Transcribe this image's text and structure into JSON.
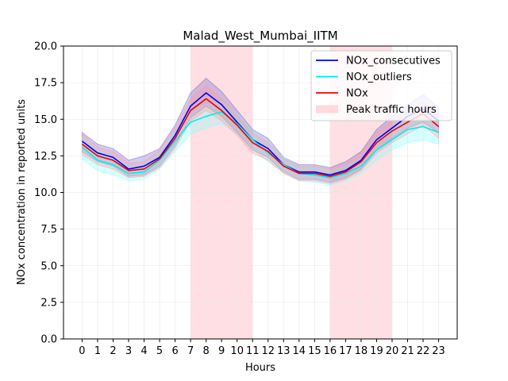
{
  "chart_data": {
    "type": "line",
    "title": "Malad_West_Mumbai_IITM",
    "xlabel": "Hours",
    "ylabel": "NOx concentration in reported units",
    "x": [
      0,
      1,
      2,
      3,
      4,
      5,
      6,
      7,
      8,
      9,
      10,
      11,
      12,
      13,
      14,
      15,
      16,
      17,
      18,
      19,
      20,
      21,
      22,
      23
    ],
    "xlim": [
      -1.2,
      24.2
    ],
    "ylim": [
      0,
      20
    ],
    "yticks": [
      0.0,
      2.5,
      5.0,
      7.5,
      10.0,
      12.5,
      15.0,
      17.5,
      20.0
    ],
    "ytick_labels": [
      "0.0",
      "2.5",
      "5.0",
      "7.5",
      "10.0",
      "12.5",
      "15.0",
      "17.5",
      "20.0"
    ],
    "grid": true,
    "legend_position": "top-right",
    "shaded_regions": [
      {
        "name": "Peak traffic hours",
        "x_start": 7,
        "x_end": 11,
        "color": "#ffc0c8"
      },
      {
        "name": "Peak traffic hours",
        "x_start": 16,
        "x_end": 20,
        "color": "#ffc0c8"
      }
    ],
    "series": [
      {
        "name": "NOx_consecutives",
        "color": "#0000ee",
        "band_color": "#6a5acd",
        "values": [
          13.5,
          12.7,
          12.4,
          11.6,
          11.8,
          12.4,
          13.9,
          15.9,
          16.8,
          16.0,
          14.8,
          13.6,
          13.0,
          11.9,
          11.4,
          11.4,
          11.2,
          11.5,
          12.2,
          13.6,
          14.4,
          15.2,
          15.7,
          14.9
        ],
        "lower": [
          12.8,
          12.1,
          11.8,
          11.1,
          11.2,
          11.8,
          13.2,
          15.1,
          15.9,
          15.2,
          14.1,
          12.9,
          12.4,
          11.4,
          10.9,
          10.9,
          10.7,
          11.0,
          11.6,
          12.9,
          13.7,
          14.4,
          14.8,
          14.1
        ],
        "upper": [
          14.1,
          13.3,
          13.0,
          12.2,
          12.5,
          13.0,
          14.6,
          16.8,
          17.8,
          16.9,
          15.6,
          14.3,
          13.7,
          12.4,
          11.9,
          11.9,
          11.7,
          12.1,
          12.8,
          14.3,
          15.2,
          16.0,
          16.7,
          15.8
        ]
      },
      {
        "name": "NOx_outliers",
        "color": "#00eeee",
        "band_color": "#7fffff",
        "values": [
          13.1,
          12.2,
          11.9,
          11.3,
          11.4,
          12.2,
          13.5,
          14.8,
          15.2,
          15.5,
          14.7,
          13.6,
          12.7,
          11.9,
          11.3,
          11.2,
          11.0,
          11.3,
          11.8,
          12.9,
          13.6,
          14.3,
          14.5,
          14.1
        ],
        "lower": [
          12.3,
          11.5,
          11.2,
          10.8,
          10.9,
          11.6,
          12.8,
          14.0,
          14.4,
          14.7,
          14.0,
          12.9,
          12.1,
          11.4,
          10.8,
          10.7,
          10.5,
          10.8,
          11.3,
          12.2,
          12.9,
          13.4,
          13.6,
          13.3
        ],
        "upper": [
          13.8,
          12.9,
          12.5,
          11.8,
          11.9,
          12.7,
          14.2,
          15.6,
          16.0,
          16.2,
          15.4,
          14.2,
          13.3,
          12.4,
          11.8,
          11.7,
          11.5,
          11.8,
          12.3,
          13.6,
          14.3,
          15.1,
          15.3,
          14.8
        ]
      },
      {
        "name": "NOx",
        "color": "#ee0000",
        "band_color": "#ff9999",
        "values": [
          13.3,
          12.5,
          12.2,
          11.5,
          11.6,
          12.3,
          13.7,
          15.6,
          16.4,
          15.6,
          14.6,
          13.4,
          12.8,
          11.8,
          11.3,
          11.3,
          11.1,
          11.4,
          12.1,
          13.4,
          14.2,
          14.8,
          15.4,
          14.5
        ],
        "lower": [
          12.6,
          11.9,
          11.6,
          11.0,
          11.1,
          11.7,
          13.0,
          14.9,
          15.6,
          14.9,
          13.9,
          12.7,
          12.2,
          11.3,
          10.8,
          10.8,
          10.6,
          10.9,
          11.5,
          12.7,
          13.4,
          14.0,
          14.6,
          13.7
        ],
        "upper": [
          14.0,
          13.1,
          12.8,
          12.0,
          12.1,
          12.9,
          14.4,
          16.4,
          17.3,
          16.4,
          15.3,
          14.1,
          13.4,
          12.3,
          11.8,
          11.8,
          11.6,
          11.9,
          12.7,
          14.1,
          15.0,
          15.6,
          16.2,
          15.3
        ]
      }
    ],
    "legend_entries": [
      "NOx_consecutives",
      "NOx_outliers",
      "NOx",
      "Peak traffic hours"
    ]
  }
}
